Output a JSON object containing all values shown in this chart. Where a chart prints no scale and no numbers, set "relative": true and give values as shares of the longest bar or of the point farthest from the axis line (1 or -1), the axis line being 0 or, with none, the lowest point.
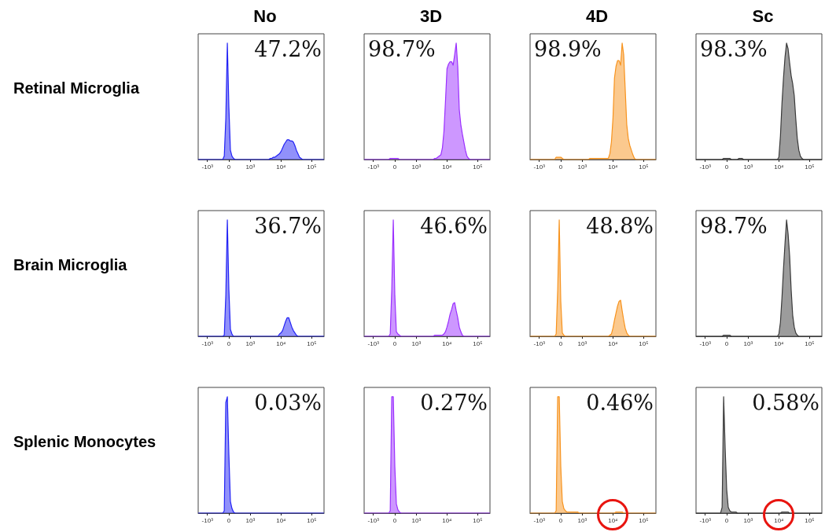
{
  "chart_data": [
    {
      "type": "area",
      "title": "No",
      "ylabel": "Retinal Microglia",
      "relative": true,
      "color": "#2323f5",
      "annotations": [
        "47.2%"
      ],
      "categories": [
        null,
        null,
        null,
        null,
        null,
        null,
        "-10³",
        null,
        null,
        null,
        null,
        null,
        null,
        null,
        null,
        null,
        null,
        null,
        null,
        null,
        "0",
        null,
        null,
        null,
        null,
        null,
        null,
        null,
        null,
        null,
        null,
        null,
        null,
        null,
        "10³",
        null,
        null,
        null,
        null,
        null,
        null,
        null,
        null,
        null,
        null,
        null,
        null,
        null,
        null,
        null,
        null,
        null,
        null,
        null,
        "10⁴",
        null,
        null,
        null,
        null,
        null,
        null,
        null,
        null,
        null,
        null,
        null,
        null,
        null,
        null,
        null,
        null,
        null,
        null,
        null,
        "10⁵",
        null,
        null,
        null,
        null,
        null,
        null,
        null,
        null
      ],
      "values": [
        0,
        0,
        0,
        0,
        0,
        0,
        0,
        0,
        0,
        0,
        0,
        0,
        0,
        0,
        0,
        0,
        0,
        0.03,
        0.35,
        1,
        0.45,
        0.08,
        0.03,
        0.01,
        0,
        0,
        0,
        0,
        0,
        0,
        0,
        0,
        0,
        0,
        0,
        0,
        0,
        0,
        0,
        0,
        0,
        0,
        0,
        0,
        0,
        0,
        0,
        0.01,
        0.01,
        0.02,
        0.02,
        0.03,
        0.04,
        0.05,
        0.07,
        0.1,
        0.13,
        0.15,
        0.17,
        0.17,
        0.16,
        0.16,
        0.15,
        0.12,
        0.08,
        0.05,
        0.02,
        0.01,
        0,
        0,
        0,
        0,
        0,
        0,
        0,
        0,
        0,
        0,
        0,
        0,
        0,
        0,
        0
      ]
    },
    {
      "type": "area",
      "title": "3D",
      "relative": true,
      "color": "#9b30ff",
      "annotations": [
        "98.7%"
      ],
      "categories": [
        null,
        null,
        null,
        null,
        null,
        null,
        "-10³",
        null,
        null,
        null,
        null,
        null,
        null,
        null,
        null,
        null,
        null,
        null,
        null,
        null,
        "0",
        null,
        null,
        null,
        null,
        null,
        null,
        null,
        null,
        null,
        null,
        null,
        null,
        null,
        "10³",
        null,
        null,
        null,
        null,
        null,
        null,
        null,
        null,
        null,
        null,
        null,
        null,
        null,
        null,
        null,
        null,
        null,
        null,
        null,
        "10⁴",
        null,
        null,
        null,
        null,
        null,
        null,
        null,
        null,
        null,
        null,
        null,
        null,
        null,
        null,
        null,
        null,
        null,
        null,
        null,
        "10⁵",
        null,
        null,
        null,
        null,
        null,
        null,
        null,
        null
      ],
      "values": [
        0,
        0,
        0,
        0,
        0,
        0,
        0,
        0,
        0,
        0,
        0,
        0,
        0,
        0,
        0,
        0,
        0,
        0.01,
        0.01,
        0.01,
        0.01,
        0.01,
        0.01,
        0,
        0,
        0,
        0,
        0,
        0,
        0,
        0,
        0,
        0,
        0,
        0,
        0,
        0,
        0,
        0,
        0,
        0,
        0,
        0,
        0,
        0,
        0,
        0.01,
        0.01,
        0.02,
        0.03,
        0.04,
        0.1,
        0.24,
        0.5,
        0.78,
        0.82,
        0.84,
        0.84,
        0.81,
        0.9,
        1,
        0.8,
        0.43,
        0.3,
        0.22,
        0.15,
        0.08,
        0.03,
        0.01,
        0,
        0,
        0,
        0,
        0,
        0,
        0,
        0,
        0,
        0,
        0,
        0,
        0,
        0
      ]
    },
    {
      "type": "area",
      "title": "4D",
      "relative": true,
      "color": "#f7931e",
      "annotations": [
        "98.9%"
      ],
      "categories": [
        null,
        null,
        null,
        null,
        null,
        null,
        "-10³",
        null,
        null,
        null,
        null,
        null,
        null,
        null,
        null,
        null,
        null,
        null,
        null,
        null,
        "0",
        null,
        null,
        null,
        null,
        null,
        null,
        null,
        null,
        null,
        null,
        null,
        null,
        null,
        "10³",
        null,
        null,
        null,
        null,
        null,
        null,
        null,
        null,
        null,
        null,
        null,
        null,
        null,
        null,
        null,
        null,
        null,
        null,
        null,
        "10⁴",
        null,
        null,
        null,
        null,
        null,
        null,
        null,
        null,
        null,
        null,
        null,
        null,
        null,
        null,
        null,
        null,
        null,
        null,
        null,
        "10⁵",
        null,
        null,
        null,
        null,
        null,
        null,
        null,
        null
      ],
      "values": [
        0,
        0,
        0,
        0,
        0,
        0,
        0,
        0,
        0,
        0,
        0,
        0,
        0,
        0,
        0,
        0,
        0,
        0.02,
        0.02,
        0.02,
        0.02,
        0.01,
        0,
        0,
        0,
        0,
        0,
        0,
        0,
        0,
        0,
        0,
        0,
        0,
        0,
        0,
        0,
        0,
        0,
        0.01,
        0.01,
        0.01,
        0.01,
        0.01,
        0.01,
        0.01,
        0.01,
        0.01,
        0.01,
        0.01,
        0.01,
        0.01,
        0.05,
        0.15,
        0.35,
        0.7,
        0.8,
        0.85,
        0.85,
        0.81,
        1,
        0.9,
        0.6,
        0.3,
        0.18,
        0.12,
        0.08,
        0.04,
        0.01,
        0,
        0,
        0,
        0,
        0,
        0,
        0,
        0,
        0,
        0,
        0,
        0,
        0,
        0
      ]
    },
    {
      "type": "area",
      "title": "Sc",
      "relative": true,
      "color": "#3a3a3a",
      "annotations": [
        "98.3%"
      ],
      "categories": [
        null,
        null,
        null,
        null,
        null,
        null,
        "-10³",
        null,
        null,
        null,
        null,
        null,
        null,
        null,
        null,
        null,
        null,
        null,
        null,
        null,
        "0",
        null,
        null,
        null,
        null,
        null,
        null,
        null,
        null,
        null,
        null,
        null,
        null,
        null,
        "10³",
        null,
        null,
        null,
        null,
        null,
        null,
        null,
        null,
        null,
        null,
        null,
        null,
        null,
        null,
        null,
        null,
        null,
        null,
        null,
        "10⁴",
        null,
        null,
        null,
        null,
        null,
        null,
        null,
        null,
        null,
        null,
        null,
        null,
        null,
        null,
        null,
        null,
        null,
        null,
        null,
        "10⁵",
        null,
        null,
        null,
        null,
        null,
        null,
        null,
        null
      ],
      "values": [
        0,
        0,
        0,
        0,
        0,
        0,
        0,
        0,
        0,
        0,
        0,
        0,
        0,
        0,
        0,
        0,
        0,
        0,
        0.01,
        0.01,
        0.01,
        0.01,
        0.01,
        0,
        0,
        0,
        0,
        0,
        0.01,
        0.01,
        0.01,
        0,
        0,
        0,
        0,
        0,
        0,
        0,
        0,
        0,
        0,
        0,
        0,
        0,
        0,
        0,
        0,
        0,
        0,
        0,
        0,
        0,
        0,
        0,
        0.02,
        0.2,
        0.48,
        0.7,
        0.88,
        1,
        0.95,
        0.83,
        0.72,
        0.65,
        0.55,
        0.35,
        0.18,
        0.08,
        0.03,
        0.01,
        0,
        0,
        0,
        0,
        0,
        0,
        0,
        0,
        0,
        0,
        0,
        0,
        0
      ]
    },
    {
      "type": "area",
      "ylabel": "Brain Microglia",
      "relative": true,
      "color": "#2323f5",
      "annotations": [
        "36.7%"
      ],
      "categories": [
        null,
        null,
        null,
        null,
        null,
        null,
        "-10³",
        null,
        null,
        null,
        null,
        null,
        null,
        null,
        null,
        null,
        null,
        null,
        null,
        null,
        "0",
        null,
        null,
        null,
        null,
        null,
        null,
        null,
        null,
        null,
        null,
        null,
        null,
        null,
        "10³",
        null,
        null,
        null,
        null,
        null,
        null,
        null,
        null,
        null,
        null,
        null,
        null,
        null,
        null,
        null,
        null,
        null,
        null,
        null,
        "10⁴",
        null,
        null,
        null,
        null,
        null,
        null,
        null,
        null,
        null,
        null,
        null,
        null,
        null,
        null,
        null,
        null,
        null,
        null,
        null,
        "10⁵",
        null,
        null,
        null,
        null,
        null,
        null,
        null,
        null
      ],
      "values": [
        0,
        0,
        0,
        0,
        0,
        0,
        0,
        0,
        0,
        0,
        0,
        0,
        0,
        0,
        0,
        0,
        0,
        0.01,
        0.35,
        1,
        0.4,
        0.06,
        0.02,
        0,
        0,
        0,
        0,
        0,
        0,
        0,
        0,
        0,
        0,
        0,
        0,
        0,
        0,
        0,
        0,
        0,
        0,
        0,
        0,
        0,
        0,
        0,
        0,
        0,
        0,
        0,
        0,
        0,
        0,
        0.02,
        0.03,
        0.05,
        0.09,
        0.13,
        0.16,
        0.16,
        0.12,
        0.08,
        0.05,
        0.03,
        0.01,
        0,
        0,
        0,
        0,
        0,
        0,
        0,
        0,
        0,
        0,
        0,
        0,
        0,
        0,
        0,
        0,
        0,
        0
      ]
    },
    {
      "type": "area",
      "relative": true,
      "color": "#9b30ff",
      "annotations": [
        "46.6%"
      ],
      "categories": [
        null,
        null,
        null,
        null,
        null,
        null,
        "-10³",
        null,
        null,
        null,
        null,
        null,
        null,
        null,
        null,
        null,
        null,
        null,
        null,
        null,
        "0",
        null,
        null,
        null,
        null,
        null,
        null,
        null,
        null,
        null,
        null,
        null,
        null,
        null,
        "10³",
        null,
        null,
        null,
        null,
        null,
        null,
        null,
        null,
        null,
        null,
        null,
        null,
        null,
        null,
        null,
        null,
        null,
        null,
        null,
        "10⁴",
        null,
        null,
        null,
        null,
        null,
        null,
        null,
        null,
        null,
        null,
        null,
        null,
        null,
        null,
        null,
        null,
        null,
        null,
        null,
        "10⁵",
        null,
        null,
        null,
        null,
        null,
        null,
        null,
        null
      ],
      "values": [
        0,
        0,
        0,
        0,
        0,
        0,
        0,
        0,
        0,
        0,
        0,
        0,
        0,
        0,
        0,
        0,
        0,
        0.02,
        0.4,
        1,
        0.35,
        0.04,
        0.02,
        0.01,
        0,
        0,
        0,
        0,
        0,
        0,
        0,
        0,
        0,
        0,
        0,
        0,
        0,
        0,
        0,
        0,
        0,
        0,
        0,
        0,
        0,
        0,
        0.01,
        0.01,
        0.01,
        0.01,
        0.01,
        0.01,
        0.02,
        0.04,
        0.08,
        0.13,
        0.19,
        0.23,
        0.28,
        0.29,
        0.22,
        0.16,
        0.08,
        0.04,
        0.01,
        0,
        0,
        0,
        0,
        0,
        0,
        0,
        0,
        0,
        0,
        0,
        0,
        0,
        0,
        0,
        0,
        0,
        0
      ]
    },
    {
      "type": "area",
      "relative": true,
      "color": "#f7931e",
      "annotations": [
        "48.8%"
      ],
      "categories": [
        null,
        null,
        null,
        null,
        null,
        null,
        "-10³",
        null,
        null,
        null,
        null,
        null,
        null,
        null,
        null,
        null,
        null,
        null,
        null,
        null,
        "0",
        null,
        null,
        null,
        null,
        null,
        null,
        null,
        null,
        null,
        null,
        null,
        null,
        null,
        "10³",
        null,
        null,
        null,
        null,
        null,
        null,
        null,
        null,
        null,
        null,
        null,
        null,
        null,
        null,
        null,
        null,
        null,
        null,
        null,
        "10⁴",
        null,
        null,
        null,
        null,
        null,
        null,
        null,
        null,
        null,
        null,
        null,
        null,
        null,
        null,
        null,
        null,
        null,
        null,
        null,
        "10⁵",
        null,
        null,
        null,
        null,
        null,
        null,
        null,
        null
      ],
      "values": [
        0,
        0,
        0,
        0,
        0,
        0,
        0,
        0,
        0,
        0,
        0,
        0,
        0,
        0,
        0,
        0,
        0,
        0.02,
        0.4,
        1,
        0.3,
        0.03,
        0.01,
        0,
        0,
        0,
        0,
        0,
        0,
        0,
        0,
        0,
        0,
        0,
        0,
        0,
        0,
        0,
        0,
        0,
        0,
        0,
        0,
        0,
        0,
        0,
        0,
        0,
        0,
        0,
        0,
        0,
        0.01,
        0.02,
        0.07,
        0.14,
        0.2,
        0.26,
        0.3,
        0.31,
        0.22,
        0.14,
        0.07,
        0.03,
        0.01,
        0,
        0,
        0,
        0,
        0,
        0,
        0,
        0,
        0,
        0,
        0,
        0,
        0,
        0,
        0,
        0,
        0,
        0
      ]
    },
    {
      "type": "area",
      "relative": true,
      "color": "#3a3a3a",
      "annotations": [
        "98.7%"
      ],
      "categories": [
        null,
        null,
        null,
        null,
        null,
        null,
        "-10³",
        null,
        null,
        null,
        null,
        null,
        null,
        null,
        null,
        null,
        null,
        null,
        null,
        null,
        "0",
        null,
        null,
        null,
        null,
        null,
        null,
        null,
        null,
        null,
        null,
        null,
        null,
        null,
        "10³",
        null,
        null,
        null,
        null,
        null,
        null,
        null,
        null,
        null,
        null,
        null,
        null,
        null,
        null,
        null,
        null,
        null,
        null,
        null,
        "10⁴",
        null,
        null,
        null,
        null,
        null,
        null,
        null,
        null,
        null,
        null,
        null,
        null,
        null,
        null,
        null,
        null,
        null,
        null,
        null,
        "10⁵",
        null,
        null,
        null,
        null,
        null,
        null,
        null,
        null
      ],
      "values": [
        0,
        0,
        0,
        0,
        0,
        0,
        0,
        0,
        0,
        0,
        0,
        0,
        0,
        0,
        0,
        0,
        0,
        0,
        0.01,
        0.01,
        0.01,
        0.01,
        0.01,
        0,
        0,
        0,
        0,
        0,
        0,
        0,
        0,
        0,
        0,
        0,
        0,
        0,
        0,
        0,
        0,
        0,
        0,
        0,
        0,
        0,
        0,
        0,
        0,
        0,
        0,
        0,
        0,
        0,
        0,
        0,
        0.02,
        0.12,
        0.33,
        0.58,
        0.8,
        1,
        0.88,
        0.69,
        0.4,
        0.18,
        0.08,
        0.03,
        0.01,
        0,
        0,
        0,
        0,
        0,
        0,
        0,
        0,
        0,
        0,
        0,
        0,
        0,
        0,
        0,
        0
      ]
    },
    {
      "type": "area",
      "ylabel": "Splenic Monocytes",
      "relative": true,
      "color": "#2323f5",
      "annotations": [
        "0.03%"
      ],
      "categories": [
        null,
        null,
        null,
        null,
        null,
        null,
        "-10³",
        null,
        null,
        null,
        null,
        null,
        null,
        null,
        null,
        null,
        null,
        null,
        null,
        null,
        "0",
        null,
        null,
        null,
        null,
        null,
        null,
        null,
        null,
        null,
        null,
        null,
        null,
        null,
        "10³",
        null,
        null,
        null,
        null,
        null,
        null,
        null,
        null,
        null,
        null,
        null,
        null,
        null,
        null,
        null,
        null,
        null,
        null,
        null,
        "10⁴",
        null,
        null,
        null,
        null,
        null,
        null,
        null,
        null,
        null,
        null,
        null,
        null,
        null,
        null,
        null,
        null,
        null,
        null,
        null,
        "10⁵",
        null,
        null,
        null,
        null,
        null,
        null,
        null,
        null
      ],
      "values": [
        0,
        0,
        0,
        0,
        0,
        0,
        0,
        0,
        0,
        0,
        0,
        0,
        0,
        0,
        0,
        0,
        0,
        0.02,
        0.95,
        1,
        0.5,
        0.1,
        0.04,
        0.01,
        0,
        0,
        0,
        0,
        0,
        0,
        0,
        0,
        0,
        0,
        0,
        0,
        0,
        0,
        0,
        0,
        0,
        0,
        0,
        0,
        0,
        0,
        0,
        0,
        0,
        0,
        0,
        0,
        0,
        0,
        0,
        0,
        0,
        0,
        0,
        0,
        0,
        0,
        0,
        0,
        0,
        0,
        0,
        0,
        0,
        0,
        0,
        0,
        0,
        0,
        0,
        0,
        0,
        0,
        0,
        0,
        0,
        0,
        0
      ]
    },
    {
      "type": "area",
      "relative": true,
      "color": "#9b30ff",
      "annotations": [
        "0.27%"
      ],
      "categories": [
        null,
        null,
        null,
        null,
        null,
        null,
        "-10³",
        null,
        null,
        null,
        null,
        null,
        null,
        null,
        null,
        null,
        null,
        null,
        null,
        null,
        "0",
        null,
        null,
        null,
        null,
        null,
        null,
        null,
        null,
        null,
        null,
        null,
        null,
        null,
        "10³",
        null,
        null,
        null,
        null,
        null,
        null,
        null,
        null,
        null,
        null,
        null,
        null,
        null,
        null,
        null,
        null,
        null,
        null,
        null,
        "10⁴",
        null,
        null,
        null,
        null,
        null,
        null,
        null,
        null,
        null,
        null,
        null,
        null,
        null,
        null,
        null,
        null,
        null,
        null,
        null,
        "10⁵",
        null,
        null,
        null,
        null,
        null,
        null,
        null,
        null
      ],
      "values": [
        0,
        0,
        0,
        0,
        0,
        0,
        0,
        0,
        0,
        0,
        0,
        0,
        0,
        0,
        0,
        0,
        0,
        0.02,
        1,
        1,
        0.4,
        0.08,
        0.03,
        0.01,
        0,
        0,
        0,
        0,
        0,
        0,
        0,
        0,
        0,
        0,
        0,
        0,
        0,
        0,
        0,
        0,
        0,
        0,
        0,
        0,
        0,
        0,
        0,
        0,
        0,
        0,
        0,
        0,
        0,
        0,
        0,
        0,
        0,
        0,
        0,
        0,
        0,
        0,
        0,
        0,
        0,
        0,
        0,
        0,
        0,
        0,
        0,
        0,
        0,
        0,
        0,
        0,
        0,
        0,
        0,
        0,
        0,
        0,
        0
      ]
    },
    {
      "type": "area",
      "relative": true,
      "color": "#f7931e",
      "annotations": [
        "0.46%"
      ],
      "categories": [
        null,
        null,
        null,
        null,
        null,
        null,
        "-10³",
        null,
        null,
        null,
        null,
        null,
        null,
        null,
        null,
        null,
        null,
        null,
        null,
        null,
        "0",
        null,
        null,
        null,
        null,
        null,
        null,
        null,
        null,
        null,
        null,
        null,
        null,
        null,
        "10³",
        null,
        null,
        null,
        null,
        null,
        null,
        null,
        null,
        null,
        null,
        null,
        null,
        null,
        null,
        null,
        null,
        null,
        null,
        null,
        "10⁴",
        null,
        null,
        null,
        null,
        null,
        null,
        null,
        null,
        null,
        null,
        null,
        null,
        null,
        null,
        null,
        null,
        null,
        null,
        null,
        "10⁵",
        null,
        null,
        null,
        null,
        null,
        null,
        null,
        null
      ],
      "values": [
        0,
        0,
        0,
        0,
        0,
        0,
        0,
        0,
        0,
        0,
        0,
        0,
        0,
        0,
        0,
        0,
        0,
        0.02,
        1,
        1,
        0.4,
        0.1,
        0.04,
        0.02,
        0.01,
        0.01,
        0.01,
        0.01,
        0.01,
        0.01,
        0.01,
        0.01,
        0,
        0,
        0,
        0,
        0,
        0,
        0,
        0,
        0,
        0,
        0,
        0,
        0,
        0,
        0,
        0,
        0,
        0,
        0,
        0,
        0,
        0,
        0,
        0,
        0.01,
        0.01,
        0.01,
        0.01,
        0.01,
        0,
        0,
        0,
        0,
        0,
        0,
        0,
        0,
        0,
        0,
        0,
        0,
        0,
        0,
        0,
        0,
        0,
        0,
        0,
        0,
        0,
        0
      ]
    },
    {
      "type": "area",
      "relative": true,
      "color": "#3a3a3a",
      "annotations": [
        "0.58%"
      ],
      "categories": [
        null,
        null,
        null,
        null,
        null,
        null,
        "-10³",
        null,
        null,
        null,
        null,
        null,
        null,
        null,
        null,
        null,
        null,
        null,
        null,
        null,
        "0",
        null,
        null,
        null,
        null,
        null,
        null,
        null,
        null,
        null,
        null,
        null,
        null,
        null,
        "10³",
        null,
        null,
        null,
        null,
        null,
        null,
        null,
        null,
        null,
        null,
        null,
        null,
        null,
        null,
        null,
        null,
        null,
        null,
        null,
        "10⁴",
        null,
        null,
        null,
        null,
        null,
        null,
        null,
        null,
        null,
        null,
        null,
        null,
        null,
        null,
        null,
        null,
        null,
        null,
        null,
        "10⁵",
        null,
        null,
        null,
        null,
        null,
        null,
        null,
        null
      ],
      "values": [
        0,
        0,
        0,
        0,
        0,
        0,
        0,
        0,
        0,
        0,
        0,
        0,
        0,
        0,
        0,
        0,
        0,
        0.05,
        1,
        0.55,
        0.2,
        0.05,
        0.02,
        0.01,
        0.01,
        0.01,
        0.01,
        0,
        0,
        0,
        0,
        0,
        0,
        0,
        0,
        0,
        0,
        0,
        0,
        0,
        0,
        0,
        0,
        0,
        0,
        0,
        0,
        0,
        0,
        0,
        0,
        0,
        0,
        0,
        0,
        0,
        0.01,
        0.01,
        0.01,
        0.01,
        0.01,
        0,
        0,
        0,
        0,
        0,
        0,
        0,
        0,
        0,
        0,
        0,
        0,
        0,
        0,
        0,
        0,
        0,
        0,
        0,
        0,
        0,
        0
      ]
    }
  ]
}
